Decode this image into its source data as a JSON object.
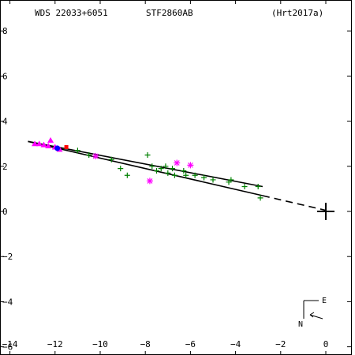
{
  "header": {
    "left": "WDS 22033+6051",
    "center": "STF2860AB",
    "right": "(Hrt2017a)"
  },
  "colors": {
    "micrometer": "#008000",
    "photographic": "#ff00ff",
    "speckle": "#ff00ff",
    "interferometric": "#0000ff",
    "other": "#ff0000",
    "orbit": "#000000",
    "residual": "#ff0000"
  },
  "orientation": {
    "east": "E",
    "north": "N"
  },
  "chart_data": {
    "type": "scatter",
    "title": "STF2860AB",
    "xlabel": "",
    "ylabel": "",
    "xlim": [
      1.0,
      -14.2
    ],
    "ylim": [
      -6.5,
      8.6
    ],
    "xticks": [
      0,
      -2,
      -4,
      -6,
      -8,
      -10,
      -12,
      -14
    ],
    "yticks": [
      8,
      6,
      4,
      2,
      0,
      -2,
      -4,
      -6
    ],
    "tick_labels_x": [
      "0",
      "−2",
      "−4",
      "−6",
      "−8",
      "−10",
      "−12",
      "−14"
    ],
    "tick_labels_y": [
      "8",
      "6",
      "4",
      "2",
      "0",
      "−2",
      "−4",
      "−6"
    ],
    "primary_position": [
      0,
      0
    ],
    "orbit_lines": [
      {
        "name": "",
        "style": "solid",
        "points": [
          [
            -13.2,
            3.1
          ],
          [
            -2.8,
            1.1
          ]
        ]
      },
      {
        "name": "",
        "style": "solid",
        "points": [
          [
            -13.2,
            3.1
          ],
          [
            -2.8,
            0.7
          ]
        ]
      },
      {
        "name": "",
        "style": "dashed",
        "points": [
          [
            -2.8,
            0.7
          ],
          [
            0,
            0.05
          ]
        ]
      }
    ],
    "series": [
      {
        "marker": "plus",
        "color": "#008000",
        "points": [
          [
            -11.0,
            2.7
          ],
          [
            -10.5,
            2.5
          ],
          [
            -9.5,
            2.3
          ],
          [
            -9.1,
            1.9
          ],
          [
            -8.8,
            1.6
          ],
          [
            -7.9,
            2.5
          ],
          [
            -7.7,
            2.0
          ],
          [
            -7.5,
            1.8
          ],
          [
            -7.3,
            1.9
          ],
          [
            -7.1,
            2.0
          ],
          [
            -7.0,
            1.7
          ],
          [
            -6.8,
            1.9
          ],
          [
            -6.7,
            1.6
          ],
          [
            -6.3,
            1.8
          ],
          [
            -6.2,
            1.6
          ],
          [
            -5.8,
            1.6
          ],
          [
            -5.4,
            1.5
          ],
          [
            -5.0,
            1.4
          ],
          [
            -4.3,
            1.3
          ],
          [
            -4.2,
            1.4
          ],
          [
            -3.6,
            1.1
          ],
          [
            -3.0,
            1.1
          ],
          [
            -2.9,
            0.6
          ]
        ]
      },
      {
        "marker": "asterisk",
        "color": "#ff00ff",
        "points": [
          [
            -10.2,
            2.45
          ],
          [
            -7.8,
            1.35
          ],
          [
            -6.6,
            2.15
          ],
          [
            -6.0,
            2.05
          ]
        ]
      },
      {
        "marker": "triangle",
        "color": "#ff00ff",
        "points": [
          [
            -12.9,
            3.0
          ],
          [
            -12.7,
            3.0
          ],
          [
            -12.5,
            2.95
          ],
          [
            -12.3,
            2.9
          ],
          [
            -12.2,
            3.15
          ],
          [
            -12.0,
            2.85
          ],
          [
            -11.8,
            2.75
          ]
        ]
      },
      {
        "marker": "square",
        "color": "#ff0000",
        "points": [
          [
            -11.5,
            2.85
          ]
        ]
      },
      {
        "marker": "circle",
        "color": "#0000ff",
        "points": [
          [
            -11.9,
            2.8
          ]
        ]
      }
    ]
  }
}
